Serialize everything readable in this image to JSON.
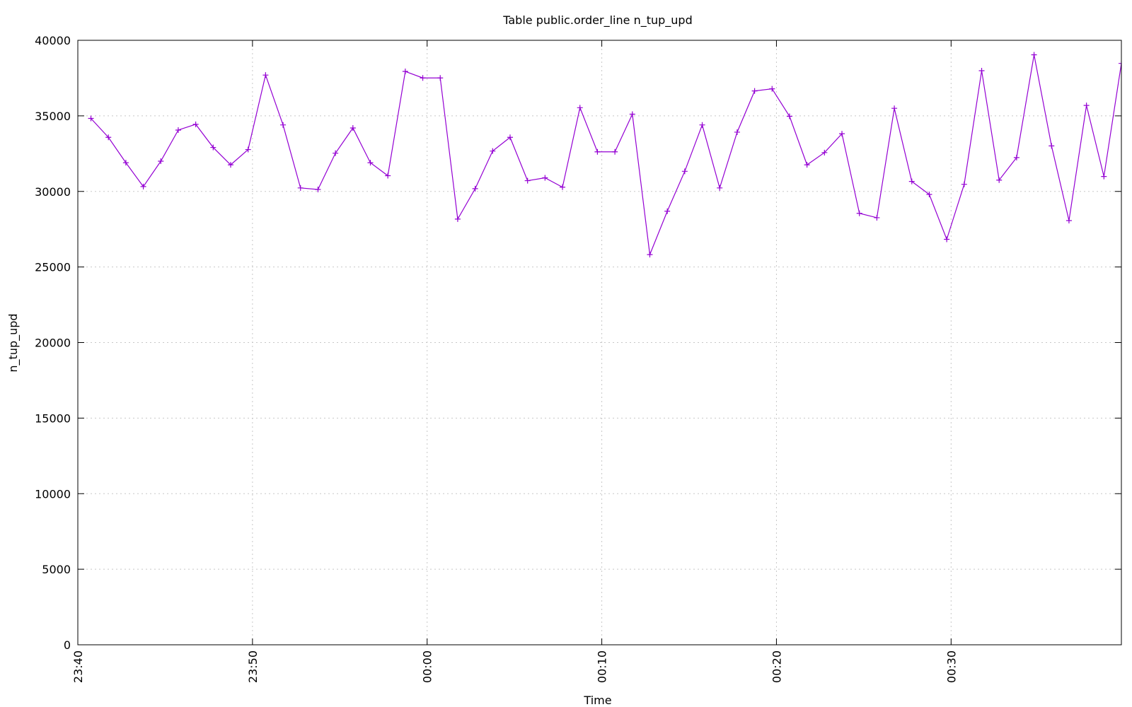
{
  "chart_data": {
    "type": "line",
    "title": "Table public.order_line n_tup_upd",
    "xlabel": "Time",
    "ylabel": "n_tup_upd",
    "x": [
      1420.75,
      1421.75,
      1422.75,
      1423.75,
      1424.75,
      1425.75,
      1426.75,
      1427.75,
      1428.75,
      1429.75,
      1430.75,
      1431.75,
      1432.75,
      1433.75,
      1434.75,
      1435.75,
      1436.75,
      1437.75,
      1438.75,
      1439.75,
      1440.75,
      1441.75,
      1442.75,
      1443.75,
      1444.75,
      1445.75,
      1446.75,
      1447.75,
      1448.75,
      1449.75,
      1450.75,
      1451.75,
      1452.75,
      1453.75,
      1454.75,
      1455.75,
      1456.75,
      1457.75,
      1458.75,
      1459.75,
      1460.75,
      1461.75,
      1462.75,
      1463.75,
      1464.75,
      1465.75,
      1466.75,
      1467.75,
      1468.75,
      1469.75,
      1470.75,
      1471.75,
      1472.75,
      1473.75,
      1474.75,
      1475.75,
      1476.75,
      1477.75,
      1478.75,
      1479.75
    ],
    "series": [
      {
        "color": "#9400d3",
        "values": [
          34830,
          33580,
          31900,
          30320,
          32000,
          34060,
          34440,
          32910,
          31760,
          32770,
          37700,
          34400,
          30230,
          30130,
          32530,
          34200,
          31900,
          31040,
          37940,
          37510,
          37510,
          28170,
          30180,
          32670,
          33580,
          30710,
          30900,
          30280,
          35540,
          32620,
          32620,
          35110,
          25820,
          28690,
          31330,
          34400,
          30230,
          33920,
          36650,
          36790,
          34970,
          31760,
          32570,
          33820,
          28550,
          28260,
          35500,
          30660,
          29800,
          26830,
          30470,
          37990,
          30750,
          32240,
          39040,
          33010,
          28070,
          35690,
          30990,
          38470
        ]
      }
    ],
    "xlim": [
      1420,
      1479.75
    ],
    "xticks": [
      {
        "value": 1420,
        "label": "23:40"
      },
      {
        "value": 1430,
        "label": "23:50"
      },
      {
        "value": 1440,
        "label": "00:00"
      },
      {
        "value": 1450,
        "label": "00:10"
      },
      {
        "value": 1460,
        "label": "00:20"
      },
      {
        "value": 1470,
        "label": "00:30"
      }
    ],
    "ylim": [
      0,
      40000
    ],
    "yticks": [
      0,
      5000,
      10000,
      15000,
      20000,
      25000,
      30000,
      35000,
      40000
    ],
    "grid": true
  }
}
